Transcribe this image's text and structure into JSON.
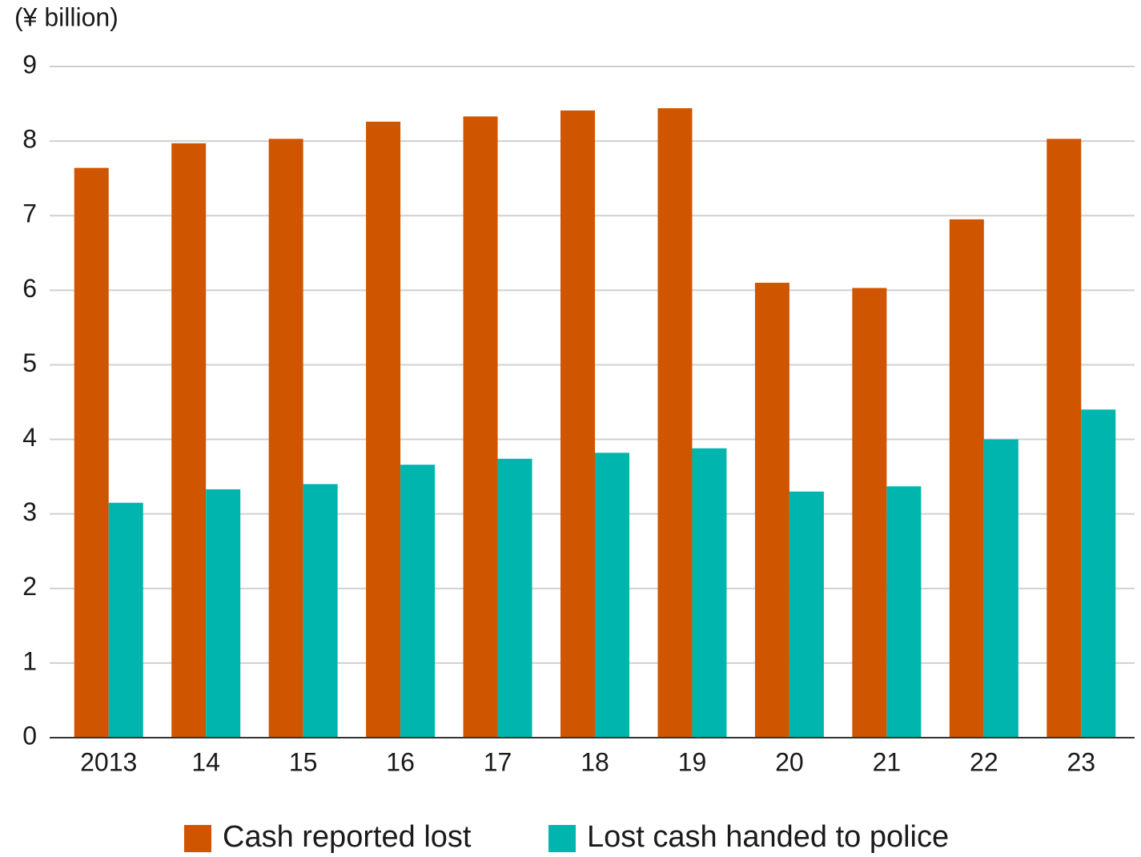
{
  "chart_data": {
    "type": "bar",
    "y_label": "(¥ billion)",
    "categories": [
      "2013",
      "14",
      "15",
      "16",
      "17",
      "18",
      "19",
      "20",
      "21",
      "22",
      "23"
    ],
    "series": [
      {
        "name": "Cash reported lost",
        "color": "#d05500",
        "values": [
          7.64,
          7.97,
          8.03,
          8.26,
          8.33,
          8.41,
          8.44,
          6.1,
          6.03,
          6.95,
          8.03
        ]
      },
      {
        "name": "Lost cash handed to police",
        "color": "#00b5ad",
        "values": [
          3.15,
          3.33,
          3.4,
          3.66,
          3.74,
          3.82,
          3.88,
          3.3,
          3.37,
          4.0,
          4.4
        ]
      }
    ],
    "ylim": [
      0,
      9
    ],
    "yticks": [
      0,
      1,
      2,
      3,
      4,
      5,
      6,
      7,
      8,
      9
    ],
    "grid": true,
    "legend": "bottom"
  }
}
